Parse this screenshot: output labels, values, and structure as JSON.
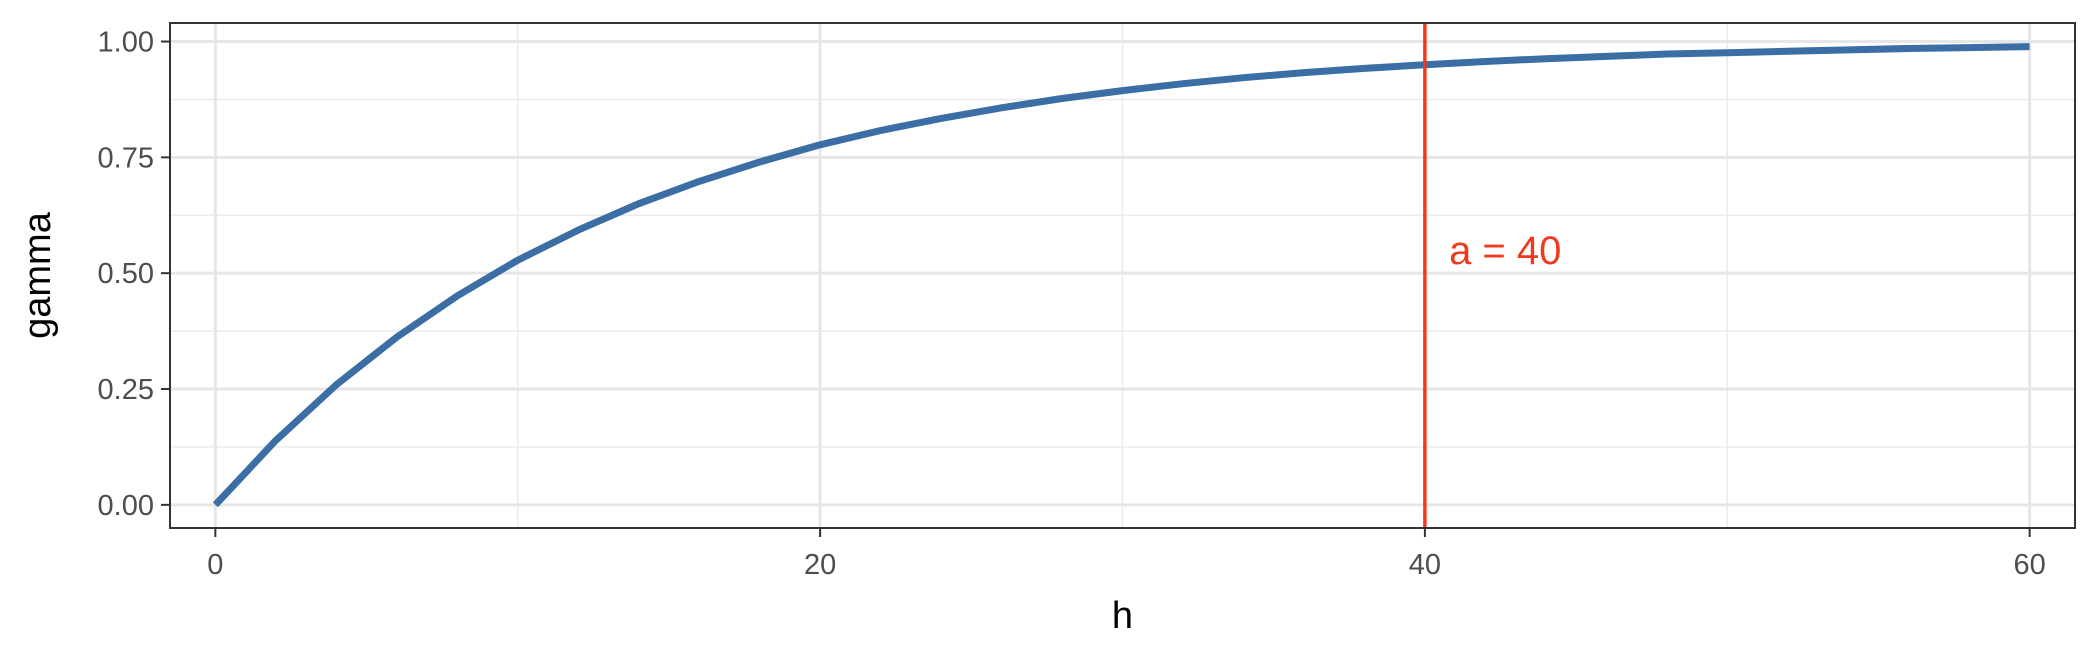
{
  "chart_data": {
    "type": "line",
    "xlabel": "h",
    "ylabel": "gamma",
    "xlim": [
      -1.5,
      61.5
    ],
    "ylim": [
      -0.05,
      1.04
    ],
    "x_ticks": [
      0,
      20,
      40,
      60
    ],
    "x_tick_labels": [
      "0",
      "20",
      "40",
      "60"
    ],
    "y_ticks": [
      0,
      0.25,
      0.5,
      0.75,
      1.0
    ],
    "y_tick_labels": [
      "0.00",
      "0.25",
      "0.50",
      "0.75",
      "1.00"
    ],
    "grid": true,
    "legend": "none",
    "series": [
      {
        "color": "#3a6ea5",
        "x": [
          0,
          2,
          4,
          6,
          8,
          10,
          12,
          14,
          16,
          18,
          20,
          22,
          24,
          26,
          28,
          30,
          32,
          34,
          36,
          38,
          40,
          42,
          44,
          46,
          48,
          50,
          52,
          54,
          56,
          58,
          60
        ],
        "y": [
          0.0,
          0.139,
          0.259,
          0.362,
          0.451,
          0.528,
          0.593,
          0.65,
          0.698,
          0.74,
          0.777,
          0.808,
          0.834,
          0.857,
          0.877,
          0.894,
          0.909,
          0.922,
          0.933,
          0.942,
          0.95,
          0.957,
          0.963,
          0.968,
          0.973,
          0.976,
          0.979,
          0.982,
          0.985,
          0.987,
          0.989
        ]
      }
    ],
    "vlines": [
      {
        "x": 40,
        "color": "#f0391e"
      }
    ],
    "annotations": [
      {
        "text": "a = 40",
        "x": 40.8,
        "y": 0.55,
        "color": "#f0391e"
      }
    ]
  }
}
